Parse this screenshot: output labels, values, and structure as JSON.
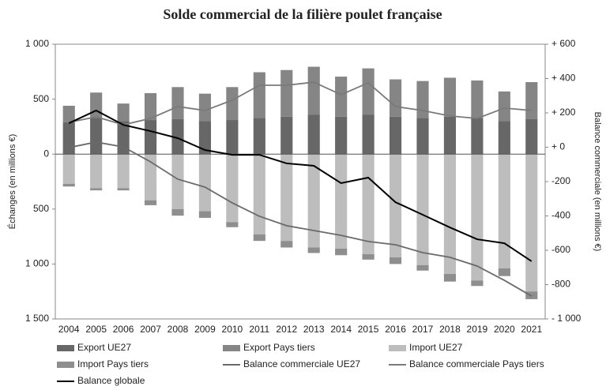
{
  "chart_data": {
    "type": "bar",
    "title": "Solde commercial de la filière poulet française",
    "y_label": "Échanges (en millions €)",
    "y2_label": "Balance commerciale (en millions €)",
    "categories": [
      "2004",
      "2005",
      "2006",
      "2007",
      "2008",
      "2009",
      "2010",
      "2011",
      "2012",
      "2013",
      "2014",
      "2015",
      "2016",
      "2017",
      "2018",
      "2019",
      "2020",
      "2021"
    ],
    "ylim": [
      -1500,
      1000
    ],
    "yticks": [
      {
        "value": 1000,
        "label": "1 000"
      },
      500,
      0,
      {
        "value": -500,
        "label": "500"
      },
      {
        "value": -1000,
        "label": "1 000"
      },
      {
        "value": -1500,
        "label": "1 500"
      }
    ],
    "y2lim": [
      -1000,
      600
    ],
    "y2ticks": [
      {
        "value": 600,
        "label": "+ 600"
      },
      {
        "value": 400,
        "label": "+ 400"
      },
      {
        "value": 200,
        "label": "+ 200"
      },
      {
        "value": 0,
        "label": "+ 0"
      },
      -200,
      -400,
      -600,
      -800,
      {
        "value": -1000,
        "label": "- 1 000"
      }
    ],
    "series": [
      {
        "name": "Export UE27",
        "type": "bar",
        "stack": "export",
        "color": "#676767",
        "values": [
          290,
          330,
          300,
          310,
          320,
          300,
          310,
          330,
          340,
          360,
          340,
          360,
          340,
          330,
          340,
          330,
          300,
          320
        ]
      },
      {
        "name": "Export Pays tiers",
        "type": "bar",
        "stack": "export",
        "color": "#858585",
        "values": [
          150,
          230,
          160,
          245,
          290,
          250,
          300,
          415,
          425,
          435,
          365,
          420,
          340,
          335,
          355,
          340,
          270,
          335
        ]
      },
      {
        "name": "Import UE27",
        "type": "bar",
        "stack": "import",
        "color": "#bdbdbd",
        "values": [
          -270,
          -310,
          -310,
          -420,
          -500,
          -520,
          -620,
          -730,
          -790,
          -850,
          -860,
          -910,
          -940,
          -1010,
          -1090,
          -1150,
          -1040,
          -1250
        ]
      },
      {
        "name": "Import Pays tiers",
        "type": "bar",
        "stack": "import",
        "color": "#8e8e8e",
        "values": [
          -25,
          -20,
          -20,
          -45,
          -60,
          -60,
          -45,
          -60,
          -60,
          -50,
          -60,
          -50,
          -60,
          -50,
          -70,
          -50,
          -70,
          -70
        ]
      },
      {
        "name": "Balance commerciale UE27",
        "type": "line",
        "axis": "y2",
        "color": "#6a6a6a",
        "values": [
          -2,
          30,
          2,
          -85,
          -186,
          -232,
          -324,
          -402,
          -457,
          -485,
          -513,
          -549,
          -568,
          -614,
          -641,
          -692,
          -775,
          -867
        ]
      },
      {
        "name": "Balance commerciale Pays tiers",
        "type": "line",
        "axis": "y2",
        "color": "#7a7a7a",
        "values": [
          145,
          177,
          131,
          168,
          237,
          214,
          274,
          361,
          361,
          379,
          306,
          375,
          237,
          214,
          182,
          168,
          228,
          214
        ]
      },
      {
        "name": "Balance globale",
        "type": "line",
        "axis": "y2",
        "color": "#000000",
        "values": [
          140,
          214,
          130,
          94,
          53,
          -16,
          -44,
          -44,
          -94,
          -108,
          -209,
          -177,
          -320,
          -393,
          -467,
          -536,
          -559,
          -664
        ]
      }
    ]
  }
}
